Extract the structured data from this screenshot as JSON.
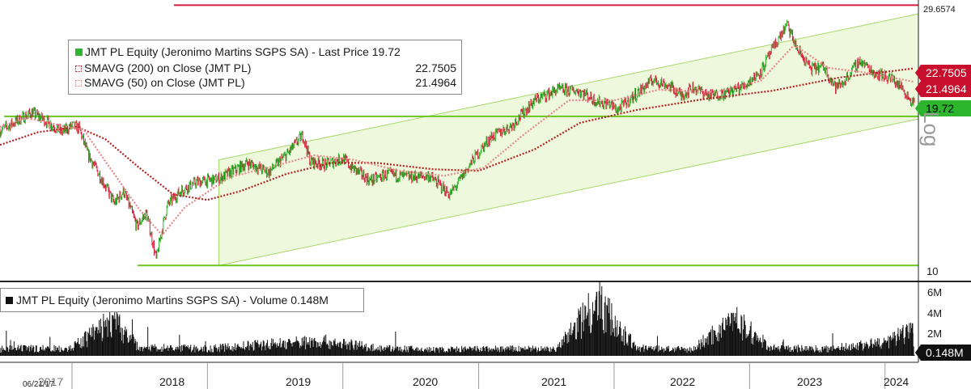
{
  "chart_data": [
    {
      "type": "candlestick",
      "title": "JMT PL Equity (Jeronimo Martins SGPS SA) - Last Price 19.72",
      "y_scale": "log",
      "ylim": [
        9.4,
        29.8
      ],
      "x_range": [
        "2017-06-21",
        "2024-03-31"
      ],
      "y_tick_labels": [
        "10",
        "29.6574"
      ],
      "series": [
        {
          "name": "JMT PL Equity (Jeronimo Martins SGPS SA) - Last Price",
          "value": "19.72",
          "points": [
            [
              "2017-06-21",
              17.5
            ],
            [
              "2017-09-15",
              18.9
            ],
            [
              "2017-10-20",
              18.3
            ],
            [
              "2017-12-05",
              17.4
            ],
            [
              "2018-01-02",
              17.9
            ],
            [
              "2018-01-20",
              17.7
            ],
            [
              "2018-02-12",
              15.9
            ],
            [
              "2018-03-10",
              14.8
            ],
            [
              "2018-04-25",
              12.9
            ],
            [
              "2018-05-20",
              13.6
            ],
            [
              "2018-06-25",
              11.7
            ],
            [
              "2018-07-20",
              12.4
            ],
            [
              "2018-08-16",
              10.2
            ],
            [
              "2018-09-15",
              12.8
            ],
            [
              "2018-10-20",
              13.6
            ],
            [
              "2018-12-01",
              14.1
            ],
            [
              "2019-02-01",
              14.3
            ],
            [
              "2019-04-20",
              15.3
            ],
            [
              "2019-06-15",
              14.7
            ],
            [
              "2019-08-05",
              15.9
            ],
            [
              "2019-09-15",
              17.2
            ],
            [
              "2019-10-05",
              15.4
            ],
            [
              "2019-11-15",
              15.2
            ],
            [
              "2020-01-01",
              15.6
            ],
            [
              "2020-01-20",
              15.1
            ],
            [
              "2020-03-15",
              14.2
            ],
            [
              "2020-05-01",
              14.6
            ],
            [
              "2020-07-01",
              14.4
            ],
            [
              "2020-08-20",
              14.5
            ],
            [
              "2020-10-15",
              13.4
            ],
            [
              "2020-11-05",
              14.0
            ],
            [
              "2020-12-20",
              15.6
            ],
            [
              "2021-02-01",
              17.0
            ],
            [
              "2021-04-01",
              17.9
            ],
            [
              "2021-06-01",
              19.9
            ],
            [
              "2021-08-01",
              20.8
            ],
            [
              "2021-10-01",
              20.7
            ],
            [
              "2021-11-15",
              19.8
            ],
            [
              "2021-12-20",
              19.6
            ],
            [
              "2022-01-10",
              19.1
            ],
            [
              "2022-03-01",
              20.4
            ],
            [
              "2022-04-15",
              21.7
            ],
            [
              "2022-06-01",
              21.1
            ],
            [
              "2022-07-01",
              20.3
            ],
            [
              "2022-08-01",
              21.0
            ],
            [
              "2022-09-15",
              20.3
            ],
            [
              "2022-11-01",
              20.5
            ],
            [
              "2022-12-20",
              21.2
            ],
            [
              "2023-02-01",
              22.5
            ],
            [
              "2023-03-15",
              25.4
            ],
            [
              "2023-04-12",
              27.3
            ],
            [
              "2023-05-10",
              24.6
            ],
            [
              "2023-06-15",
              22.7
            ],
            [
              "2023-07-20",
              22.9
            ],
            [
              "2023-08-20",
              21.0
            ],
            [
              "2023-09-10",
              21.4
            ],
            [
              "2023-10-25",
              23.5
            ],
            [
              "2023-12-01",
              22.4
            ],
            [
              "2024-01-20",
              21.8
            ],
            [
              "2024-02-15",
              21.0
            ],
            [
              "2024-03-10",
              19.9
            ],
            [
              "2024-03-20",
              19.72
            ]
          ]
        },
        {
          "name": "SMAVG (200) on Close (JMT PL)",
          "value": "22.7505",
          "points": [
            [
              "2017-06-21",
              16.5
            ],
            [
              "2017-10-01",
              17.4
            ],
            [
              "2018-01-15",
              17.8
            ],
            [
              "2018-04-01",
              16.9
            ],
            [
              "2018-07-01",
              15.0
            ],
            [
              "2018-10-01",
              13.4
            ],
            [
              "2019-01-01",
              13.1
            ],
            [
              "2019-04-01",
              13.6
            ],
            [
              "2019-08-01",
              14.6
            ],
            [
              "2019-12-01",
              15.3
            ],
            [
              "2020-04-01",
              15.3
            ],
            [
              "2020-09-01",
              14.9
            ],
            [
              "2021-01-01",
              14.8
            ],
            [
              "2021-06-01",
              16.2
            ],
            [
              "2021-10-01",
              18.1
            ],
            [
              "2022-03-01",
              19.1
            ],
            [
              "2022-09-01",
              20.0
            ],
            [
              "2023-03-01",
              20.7
            ],
            [
              "2023-09-01",
              21.9
            ],
            [
              "2024-03-20",
              22.7505
            ]
          ]
        },
        {
          "name": "SMAVG (50) on Close (JMT PL)",
          "value": "21.4964",
          "points": [
            [
              "2017-06-21",
              17.8
            ],
            [
              "2017-09-01",
              18.5
            ],
            [
              "2017-12-01",
              17.9
            ],
            [
              "2018-02-01",
              17.6
            ],
            [
              "2018-04-01",
              15.4
            ],
            [
              "2018-07-01",
              12.6
            ],
            [
              "2018-09-01",
              11.3
            ],
            [
              "2018-11-01",
              12.7
            ],
            [
              "2019-03-01",
              14.4
            ],
            [
              "2019-07-01",
              15.1
            ],
            [
              "2019-10-15",
              15.8
            ],
            [
              "2020-02-01",
              15.5
            ],
            [
              "2020-06-01",
              14.8
            ],
            [
              "2020-10-01",
              14.5
            ],
            [
              "2021-01-15",
              15.0
            ],
            [
              "2021-05-01",
              17.2
            ],
            [
              "2021-09-01",
              19.9
            ],
            [
              "2022-01-01",
              19.9
            ],
            [
              "2022-05-01",
              20.8
            ],
            [
              "2022-10-01",
              20.6
            ],
            [
              "2023-02-01",
              21.6
            ],
            [
              "2023-05-01",
              25.1
            ],
            [
              "2023-08-01",
              22.8
            ],
            [
              "2023-11-01",
              22.4
            ],
            [
              "2024-03-20",
              21.4964
            ]
          ]
        }
      ],
      "legend_placement": "top-left",
      "price_tags": [
        {
          "value": "22.7505",
          "color": "#c8102e"
        },
        {
          "value": "21.4964",
          "color": "#c8102e"
        },
        {
          "value": "19.72",
          "color": "#2db52d"
        }
      ],
      "annotations": [
        {
          "kind": "horizontal-line",
          "y": 29.6574,
          "color": "#d81b3c"
        },
        {
          "kind": "horizontal-line",
          "y": 18.6,
          "color": "#6ac521"
        },
        {
          "kind": "horizontal-line",
          "y": 9.95,
          "color": "#6ac521"
        },
        {
          "kind": "channel",
          "lower": [
            [
              "2019-02-01",
              9.95
            ],
            [
              "2024-03-31",
              18.4
            ]
          ],
          "upper": [
            [
              "2019-02-01",
              15.5
            ],
            [
              "2024-03-31",
              28.6
            ]
          ],
          "fill": "#eef8dc",
          "stroke": "#a6d96a"
        }
      ]
    },
    {
      "type": "bar",
      "title": "JMT PL Equity (Jeronimo Martins SGPS SA) - Volume 0.148M",
      "ylim": [
        0,
        7
      ],
      "y_tick_labels": [
        "6M",
        "4M",
        "2M"
      ],
      "last_value": "0.148M",
      "series": [
        {
          "name": "Volume",
          "unit": "M",
          "points": [
            [
              "2017-06-21",
              0.8
            ],
            [
              "2018-01-01",
              0.9
            ],
            [
              "2018-04-20",
              4.0
            ],
            [
              "2018-07-01",
              1.0
            ],
            [
              "2019-01-01",
              0.8
            ],
            [
              "2019-06-01",
              1.3
            ],
            [
              "2019-11-01",
              1.7
            ],
            [
              "2020-04-01",
              0.9
            ],
            [
              "2020-09-01",
              0.7
            ],
            [
              "2021-02-01",
              0.8
            ],
            [
              "2021-08-01",
              0.8
            ],
            [
              "2021-11-15",
              6.3
            ],
            [
              "2022-03-01",
              0.9
            ],
            [
              "2022-08-01",
              0.7
            ],
            [
              "2022-11-15",
              4.2
            ],
            [
              "2023-03-01",
              0.9
            ],
            [
              "2023-08-01",
              0.8
            ],
            [
              "2024-01-10",
              1.6
            ],
            [
              "2024-03-15",
              3.2
            ],
            [
              "2024-03-20",
              0.148
            ]
          ]
        }
      ]
    }
  ],
  "time_axis": {
    "start_label": "06/21/17",
    "years": [
      "2017",
      "2018",
      "2019",
      "2020",
      "2021",
      "2022",
      "2023",
      "2024"
    ]
  },
  "legend": {
    "title": "JMT PL Equity (Jeronimo Martins SGPS SA) - Last Price 19.72",
    "title_value": "",
    "sma200": {
      "label": "SMAVG (200)  on Close (JMT PL)",
      "value": "22.7505"
    },
    "sma50": {
      "label": "SMAVG (50)  on Close (JMT PL)",
      "value": "21.4964"
    }
  },
  "volume_legend": {
    "label": "JMT PL Equity (Jeronimo Martins SGPS SA) - Volume 0.148M"
  },
  "scale_label": "Log",
  "colors": {
    "up": "#2db52d",
    "down": "#d81b3c",
    "sma200": "#b22222",
    "sma50": "#e38a8a",
    "channel_fill": "#eef8dc",
    "support": "#6ac521"
  }
}
